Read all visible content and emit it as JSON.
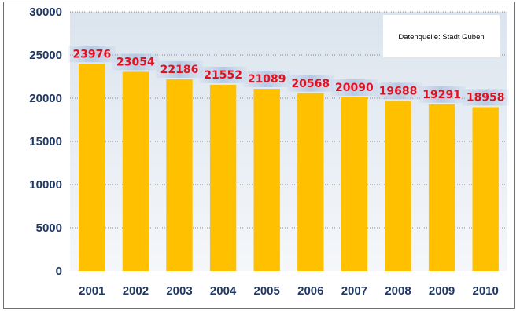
{
  "chart_data": {
    "type": "bar",
    "title": "",
    "xlabel": "",
    "ylabel": "",
    "categories": [
      "2001",
      "2002",
      "2003",
      "2004",
      "2005",
      "2006",
      "2007",
      "2008",
      "2009",
      "2010"
    ],
    "values": [
      23976,
      23054,
      22186,
      21552,
      21089,
      20568,
      20090,
      19688,
      19291,
      18958
    ],
    "data_labels": [
      "23976",
      "23054",
      "22186",
      "21552",
      "21089",
      "20568",
      "20090",
      "19688",
      "19291",
      "18958"
    ],
    "ylim": [
      0,
      30000
    ],
    "yticks": [
      "0",
      "5000",
      "10000",
      "15000",
      "20000",
      "25000",
      "30000"
    ],
    "grid": true,
    "annotation": "Datenquelle: Stadt Guben",
    "colors": {
      "bar": "#ffc000",
      "plot_top": "#dbe4ee",
      "plot_bottom": "#f5f7fa",
      "label": "#e5101e",
      "label_band": "#b5c9e4",
      "tick_text": "#1f3864"
    }
  }
}
